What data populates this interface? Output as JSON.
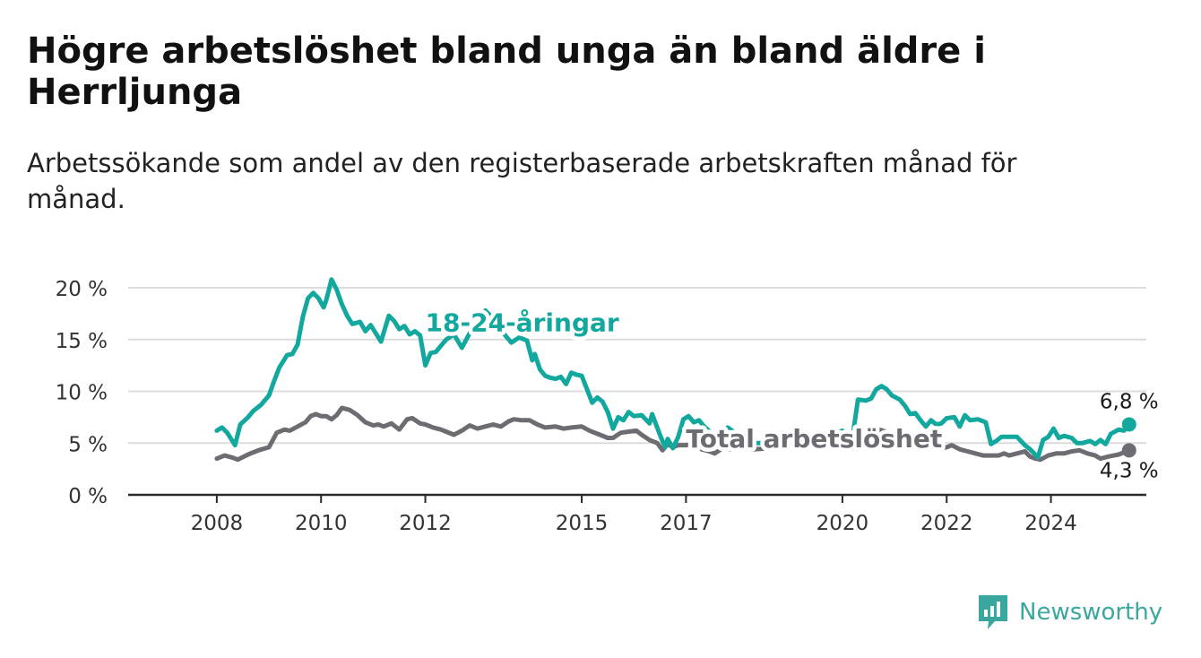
{
  "header": {
    "title": "Högre arbetslöshet bland unga än bland äldre i Herrljunga",
    "subtitle": "Arbetssökande som andel av den registerbaserade arbetskraften månad för månad."
  },
  "brand": {
    "name": "Newsworthy",
    "icon": "bar-chart-logo-icon",
    "color": "#3aa79f"
  },
  "chart_data": {
    "type": "line",
    "title": "Högre arbetslöshet bland unga än bland äldre i Herrljunga",
    "subtitle": "Arbetssökande som andel av den registerbaserade arbetskraften månad för månad.",
    "x_unit": "year",
    "xlim": [
      2006.3,
      2025.83
    ],
    "x_ticks": [
      {
        "value": 2008,
        "label": "2008"
      },
      {
        "value": 2010,
        "label": "2010"
      },
      {
        "value": 2012,
        "label": "2012"
      },
      {
        "value": 2015,
        "label": "2015"
      },
      {
        "value": 2017,
        "label": "2017"
      },
      {
        "value": 2020,
        "label": "2020"
      },
      {
        "value": 2022,
        "label": "2022"
      },
      {
        "value": 2024,
        "label": "2024"
      }
    ],
    "ylim": [
      0,
      20
    ],
    "y_ticks": [
      {
        "value": 0,
        "label": "0 %"
      },
      {
        "value": 5,
        "label": "5 %"
      },
      {
        "value": 10,
        "label": "10 %"
      },
      {
        "value": 15,
        "label": "15 %"
      },
      {
        "value": 20,
        "label": "20 %"
      }
    ],
    "grid": true,
    "legend": "inline labels",
    "series": [
      {
        "name": "18-24-åringar",
        "color": "#13a89e",
        "label_at": [
          2012.0,
          15.8
        ],
        "end_label": "6,8 %",
        "points": [
          [
            2008.0,
            6.2
          ],
          [
            2008.1,
            6.5
          ],
          [
            2008.2,
            6.0
          ],
          [
            2008.35,
            4.8
          ],
          [
            2008.45,
            6.8
          ],
          [
            2008.6,
            7.5
          ],
          [
            2008.7,
            8.1
          ],
          [
            2008.85,
            8.7
          ],
          [
            2009.0,
            9.6
          ],
          [
            2009.1,
            11.0
          ],
          [
            2009.2,
            12.3
          ],
          [
            2009.35,
            13.5
          ],
          [
            2009.45,
            13.6
          ],
          [
            2009.55,
            14.5
          ],
          [
            2009.65,
            17.2
          ],
          [
            2009.75,
            19.0
          ],
          [
            2009.85,
            19.5
          ],
          [
            2009.95,
            19.0
          ],
          [
            2010.05,
            18.1
          ],
          [
            2010.1,
            18.8
          ],
          [
            2010.2,
            20.8
          ],
          [
            2010.3,
            19.8
          ],
          [
            2010.4,
            18.4
          ],
          [
            2010.5,
            17.3
          ],
          [
            2010.6,
            16.5
          ],
          [
            2010.75,
            16.7
          ],
          [
            2010.85,
            15.8
          ],
          [
            2010.95,
            16.4
          ],
          [
            2011.05,
            15.6
          ],
          [
            2011.15,
            14.8
          ],
          [
            2011.3,
            17.3
          ],
          [
            2011.4,
            16.8
          ],
          [
            2011.5,
            16.0
          ],
          [
            2011.6,
            16.3
          ],
          [
            2011.7,
            15.5
          ],
          [
            2011.8,
            15.8
          ],
          [
            2011.9,
            15.4
          ],
          [
            2012.0,
            12.5
          ],
          [
            2012.1,
            13.7
          ],
          [
            2012.2,
            13.8
          ],
          [
            2012.3,
            14.4
          ],
          [
            2012.4,
            15.0
          ],
          [
            2012.55,
            15.5
          ],
          [
            2012.7,
            14.2
          ],
          [
            2012.85,
            15.6
          ],
          [
            2013.0,
            16.6
          ],
          [
            2013.15,
            17.8
          ],
          [
            2013.25,
            17.3
          ],
          [
            2013.35,
            16.5
          ],
          [
            2013.5,
            15.6
          ],
          [
            2013.65,
            14.7
          ],
          [
            2013.8,
            15.2
          ],
          [
            2013.95,
            14.9
          ],
          [
            2014.05,
            13.0
          ],
          [
            2014.1,
            13.6
          ],
          [
            2014.2,
            12.1
          ],
          [
            2014.3,
            11.5
          ],
          [
            2014.4,
            11.3
          ],
          [
            2014.5,
            11.2
          ],
          [
            2014.6,
            11.4
          ],
          [
            2014.7,
            10.7
          ],
          [
            2014.8,
            11.8
          ],
          [
            2014.9,
            11.6
          ],
          [
            2015.0,
            11.5
          ],
          [
            2015.1,
            10.2
          ],
          [
            2015.2,
            8.9
          ],
          [
            2015.3,
            9.4
          ],
          [
            2015.4,
            9.0
          ],
          [
            2015.5,
            8.0
          ],
          [
            2015.6,
            6.4
          ],
          [
            2015.7,
            7.5
          ],
          [
            2015.8,
            7.2
          ],
          [
            2015.9,
            8.0
          ],
          [
            2016.0,
            7.6
          ],
          [
            2016.15,
            7.7
          ],
          [
            2016.3,
            6.9
          ],
          [
            2016.35,
            7.8
          ],
          [
            2016.5,
            5.8
          ],
          [
            2016.6,
            4.6
          ],
          [
            2016.65,
            5.4
          ],
          [
            2016.75,
            4.5
          ],
          [
            2016.85,
            5.6
          ],
          [
            2016.95,
            7.3
          ],
          [
            2017.05,
            7.6
          ],
          [
            2017.15,
            7.0
          ],
          [
            2017.25,
            7.2
          ],
          [
            2017.35,
            6.6
          ],
          [
            2017.55,
            5.7
          ],
          [
            2017.8,
            6.5
          ],
          [
            2018.0,
            5.8
          ],
          [
            2018.3,
            5.0
          ],
          [
            2018.7,
            5.0
          ],
          [
            2019.0,
            5.2
          ],
          [
            2019.5,
            5.6
          ],
          [
            2019.9,
            6.0
          ],
          [
            2020.0,
            6.2
          ],
          [
            2020.1,
            5.5
          ],
          [
            2020.2,
            5.8
          ],
          [
            2020.3,
            9.2
          ],
          [
            2020.45,
            9.1
          ],
          [
            2020.55,
            9.3
          ],
          [
            2020.65,
            10.2
          ],
          [
            2020.75,
            10.5
          ],
          [
            2020.85,
            10.2
          ],
          [
            2020.95,
            9.6
          ],
          [
            2021.1,
            9.2
          ],
          [
            2021.2,
            8.6
          ],
          [
            2021.3,
            7.8
          ],
          [
            2021.4,
            7.9
          ],
          [
            2021.5,
            7.2
          ],
          [
            2021.6,
            6.6
          ],
          [
            2021.7,
            7.2
          ],
          [
            2021.8,
            6.8
          ],
          [
            2021.9,
            6.9
          ],
          [
            2022.0,
            7.4
          ],
          [
            2022.15,
            7.5
          ],
          [
            2022.25,
            6.6
          ],
          [
            2022.35,
            7.7
          ],
          [
            2022.45,
            7.2
          ],
          [
            2022.6,
            7.3
          ],
          [
            2022.75,
            7.0
          ],
          [
            2022.85,
            4.9
          ],
          [
            2022.95,
            5.2
          ],
          [
            2023.05,
            5.6
          ],
          [
            2023.2,
            5.6
          ],
          [
            2023.35,
            5.6
          ],
          [
            2023.5,
            4.8
          ],
          [
            2023.6,
            4.4
          ],
          [
            2023.7,
            3.9
          ],
          [
            2023.75,
            3.6
          ],
          [
            2023.85,
            5.3
          ],
          [
            2023.95,
            5.6
          ],
          [
            2024.05,
            6.4
          ],
          [
            2024.15,
            5.5
          ],
          [
            2024.25,
            5.7
          ],
          [
            2024.4,
            5.5
          ],
          [
            2024.5,
            5.0
          ],
          [
            2024.6,
            5.0
          ],
          [
            2024.75,
            5.2
          ],
          [
            2024.85,
            4.9
          ],
          [
            2024.95,
            5.3
          ],
          [
            2025.05,
            4.9
          ],
          [
            2025.15,
            5.9
          ],
          [
            2025.3,
            6.3
          ],
          [
            2025.4,
            6.2
          ],
          [
            2025.5,
            6.8
          ]
        ]
      },
      {
        "name": "Total arbetslöshet",
        "color": "#6e6c73",
        "label_at": [
          2017.0,
          4.6
        ],
        "end_label": "4,3 %",
        "points": [
          [
            2008.0,
            3.5
          ],
          [
            2008.15,
            3.8
          ],
          [
            2008.3,
            3.6
          ],
          [
            2008.4,
            3.4
          ],
          [
            2008.6,
            3.9
          ],
          [
            2008.8,
            4.3
          ],
          [
            2009.0,
            4.6
          ],
          [
            2009.15,
            6.0
          ],
          [
            2009.3,
            6.3
          ],
          [
            2009.4,
            6.2
          ],
          [
            2009.55,
            6.6
          ],
          [
            2009.7,
            7.0
          ],
          [
            2009.8,
            7.6
          ],
          [
            2009.9,
            7.8
          ],
          [
            2010.0,
            7.6
          ],
          [
            2010.1,
            7.6
          ],
          [
            2010.2,
            7.3
          ],
          [
            2010.3,
            7.7
          ],
          [
            2010.4,
            8.4
          ],
          [
            2010.55,
            8.2
          ],
          [
            2010.7,
            7.7
          ],
          [
            2010.85,
            7.0
          ],
          [
            2011.0,
            6.7
          ],
          [
            2011.1,
            6.8
          ],
          [
            2011.2,
            6.6
          ],
          [
            2011.35,
            6.9
          ],
          [
            2011.5,
            6.3
          ],
          [
            2011.65,
            7.3
          ],
          [
            2011.75,
            7.4
          ],
          [
            2011.9,
            6.9
          ],
          [
            2012.0,
            6.8
          ],
          [
            2012.15,
            6.5
          ],
          [
            2012.3,
            6.3
          ],
          [
            2012.4,
            6.1
          ],
          [
            2012.55,
            5.8
          ],
          [
            2012.7,
            6.2
          ],
          [
            2012.85,
            6.7
          ],
          [
            2013.0,
            6.4
          ],
          [
            2013.15,
            6.6
          ],
          [
            2013.3,
            6.8
          ],
          [
            2013.45,
            6.6
          ],
          [
            2013.6,
            7.1
          ],
          [
            2013.7,
            7.3
          ],
          [
            2013.85,
            7.2
          ],
          [
            2014.0,
            7.2
          ],
          [
            2014.15,
            6.8
          ],
          [
            2014.3,
            6.5
          ],
          [
            2014.5,
            6.6
          ],
          [
            2014.65,
            6.4
          ],
          [
            2014.8,
            6.5
          ],
          [
            2015.0,
            6.6
          ],
          [
            2015.15,
            6.2
          ],
          [
            2015.35,
            5.8
          ],
          [
            2015.5,
            5.5
          ],
          [
            2015.6,
            5.5
          ],
          [
            2015.75,
            6.0
          ],
          [
            2015.9,
            6.1
          ],
          [
            2016.05,
            6.2
          ],
          [
            2016.15,
            5.8
          ],
          [
            2016.3,
            5.3
          ],
          [
            2016.45,
            5.0
          ],
          [
            2016.55,
            4.3
          ],
          [
            2016.65,
            4.9
          ],
          [
            2016.75,
            4.6
          ],
          [
            2016.85,
            4.8
          ],
          [
            2017.0,
            4.8
          ],
          [
            2017.15,
            4.9
          ],
          [
            2017.3,
            4.4
          ],
          [
            2017.45,
            4.2
          ],
          [
            2017.55,
            4.0
          ],
          [
            2017.7,
            4.5
          ],
          [
            2017.85,
            4.4
          ],
          [
            2018.0,
            4.5
          ],
          [
            2018.3,
            4.4
          ],
          [
            2018.6,
            4.5
          ],
          [
            2018.9,
            4.8
          ],
          [
            2019.2,
            5.3
          ],
          [
            2019.6,
            5.5
          ],
          [
            2019.9,
            5.9
          ],
          [
            2020.1,
            5.9
          ],
          [
            2020.3,
            5.7
          ],
          [
            2020.5,
            6.0
          ],
          [
            2020.7,
            6.3
          ],
          [
            2020.9,
            6.0
          ],
          [
            2021.1,
            5.8
          ],
          [
            2021.3,
            5.5
          ],
          [
            2021.5,
            5.2
          ],
          [
            2021.6,
            5.0
          ],
          [
            2021.75,
            4.8
          ],
          [
            2021.85,
            4.5
          ],
          [
            2022.0,
            4.6
          ],
          [
            2022.1,
            4.8
          ],
          [
            2022.25,
            4.4
          ],
          [
            2022.4,
            4.2
          ],
          [
            2022.55,
            4.0
          ],
          [
            2022.7,
            3.8
          ],
          [
            2022.85,
            3.8
          ],
          [
            2023.0,
            3.8
          ],
          [
            2023.1,
            4.0
          ],
          [
            2023.2,
            3.8
          ],
          [
            2023.35,
            4.0
          ],
          [
            2023.5,
            4.2
          ],
          [
            2023.6,
            3.7
          ],
          [
            2023.7,
            3.5
          ],
          [
            2023.8,
            3.4
          ],
          [
            2023.95,
            3.8
          ],
          [
            2024.1,
            4.0
          ],
          [
            2024.25,
            4.0
          ],
          [
            2024.4,
            4.2
          ],
          [
            2024.55,
            4.3
          ],
          [
            2024.7,
            4.0
          ],
          [
            2024.85,
            3.8
          ],
          [
            2024.95,
            3.5
          ],
          [
            2025.1,
            3.7
          ],
          [
            2025.3,
            3.9
          ],
          [
            2025.5,
            4.3
          ]
        ]
      }
    ]
  }
}
